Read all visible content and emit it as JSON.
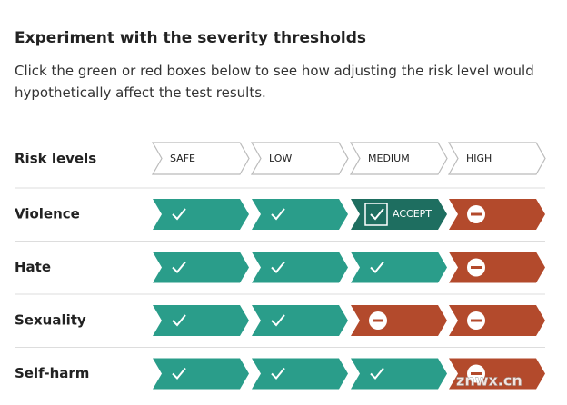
{
  "header": {
    "title": "Experiment with the severity thresholds",
    "description": "Click the green or red boxes below to see how adjusting the risk level would hypothetically affect the test results."
  },
  "table": {
    "header_label": "Risk levels",
    "levels": [
      "SAFE",
      "LOW",
      "MEDIUM",
      "HIGH"
    ],
    "rows": [
      {
        "label": "Violence",
        "cells": [
          true,
          true,
          true,
          false
        ],
        "hover": {
          "cell": 2,
          "label": "ACCEPT"
        }
      },
      {
        "label": "Hate",
        "cells": [
          true,
          true,
          true,
          false
        ]
      },
      {
        "label": "Sexuality",
        "cells": [
          true,
          true,
          false,
          false
        ]
      },
      {
        "label": "Self-harm",
        "cells": [
          true,
          true,
          true,
          false
        ]
      }
    ]
  },
  "watermark": "znwx.cn"
}
